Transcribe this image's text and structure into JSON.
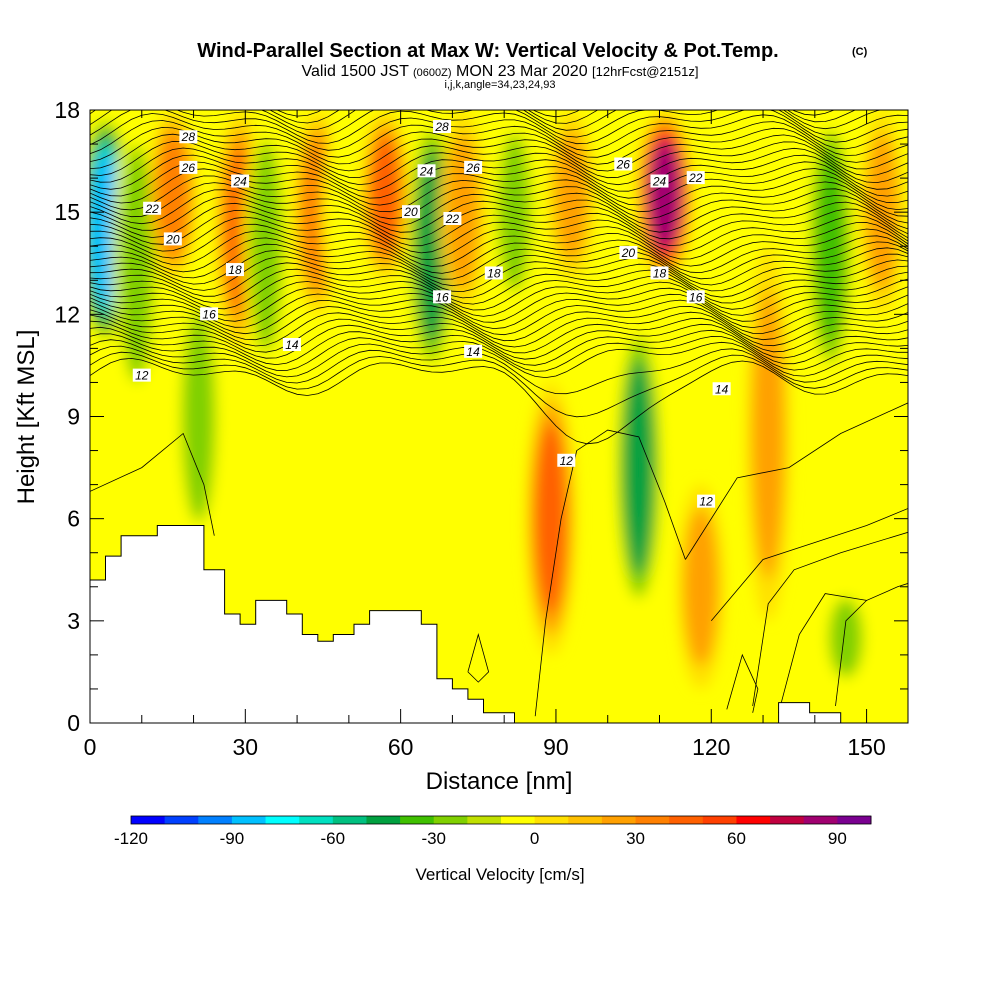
{
  "header": {
    "title": "Wind-Parallel Section at Max W: Vertical Velocity & Pot.Temp.",
    "copyright": "(C)",
    "valid_prefix": "Valid 1500 JST",
    "valid_utc": "(0600Z)",
    "valid_date": "MON 23 Mar 2020",
    "forecast": "[12hrFcst@2151z]",
    "indices": "i,j,k,angle=34,23,24,93"
  },
  "chart_data": {
    "type": "heatmap",
    "xlabel": "Distance [nm]",
    "ylabel": "Height [Kft MSL]",
    "xlim": [
      0,
      158
    ],
    "ylim": [
      0,
      18
    ],
    "x_ticks": [
      "0",
      "30",
      "60",
      "90",
      "120",
      "150"
    ],
    "y_ticks": [
      "0",
      "3",
      "6",
      "9",
      "12",
      "15",
      "18"
    ],
    "colorbar": {
      "label": "Vertical Velocity [cm/s]",
      "range": [
        -120,
        100
      ],
      "step": 10,
      "tick_labels": [
        "-120",
        "-90",
        "-60",
        "-30",
        "0",
        "30",
        "60",
        "90"
      ],
      "colors": [
        "#0000ff",
        "#0040ff",
        "#0080ff",
        "#00c0ff",
        "#00ffff",
        "#00e0c0",
        "#00c080",
        "#00a040",
        "#40c000",
        "#80d000",
        "#c0e000",
        "#ffff00",
        "#ffe000",
        "#ffc000",
        "#ffa000",
        "#ff8000",
        "#ff6000",
        "#ff4000",
        "#ff0000",
        "#c00040",
        "#a00070",
        "#7a0090"
      ]
    },
    "velocity_columns": [
      {
        "x": 3,
        "w": -100,
        "z_top": 18,
        "z_bot": 11
      },
      {
        "x": 9,
        "w": -45,
        "z_top": 18,
        "z_bot": 9
      },
      {
        "x": 16,
        "w": 50,
        "z_top": 18,
        "z_bot": 13
      },
      {
        "x": 21,
        "w": -40,
        "z_top": 13,
        "z_bot": 5
      },
      {
        "x": 29,
        "w": 55,
        "z_top": 18,
        "z_bot": 11
      },
      {
        "x": 34,
        "w": -35,
        "z_top": 18,
        "z_bot": 10
      },
      {
        "x": 44,
        "w": 50,
        "z_top": 18,
        "z_bot": 12
      },
      {
        "x": 49,
        "w": -20,
        "z_top": 18,
        "z_bot": 12
      },
      {
        "x": 57,
        "w": 55,
        "z_top": 18,
        "z_bot": 13
      },
      {
        "x": 66,
        "w": -65,
        "z_top": 18,
        "z_bot": 10
      },
      {
        "x": 72,
        "w": 40,
        "z_top": 18,
        "z_bot": 12
      },
      {
        "x": 82,
        "w": -35,
        "z_top": 18,
        "z_bot": 12
      },
      {
        "x": 89,
        "w": 60,
        "z_top": 10,
        "z_bot": 2
      },
      {
        "x": 93,
        "w": 40,
        "z_top": 18,
        "z_bot": 13
      },
      {
        "x": 106,
        "w": -60,
        "z_top": 12,
        "z_bot": 3
      },
      {
        "x": 111,
        "w": 95,
        "z_top": 18,
        "z_bot": 13
      },
      {
        "x": 118,
        "w": 45,
        "z_top": 7,
        "z_bot": 1
      },
      {
        "x": 131,
        "w": 30,
        "z_top": 14,
        "z_bot": 3
      },
      {
        "x": 143,
        "w": -50,
        "z_top": 18,
        "z_bot": 10
      },
      {
        "x": 146,
        "w": -40,
        "z_top": 4,
        "z_bot": 1
      },
      {
        "x": 153,
        "w": 30,
        "z_top": 18,
        "z_bot": 12
      }
    ],
    "theta_contours": {
      "levels_labeled": [
        "12",
        "14",
        "16",
        "18",
        "20",
        "22",
        "24",
        "26",
        "28"
      ],
      "labels": [
        {
          "text": "28",
          "x": 19,
          "z": 17.2
        },
        {
          "text": "26",
          "x": 19,
          "z": 16.3
        },
        {
          "text": "24",
          "x": 29,
          "z": 15.9
        },
        {
          "text": "22",
          "x": 12,
          "z": 15.1
        },
        {
          "text": "20",
          "x": 16,
          "z": 14.2
        },
        {
          "text": "18",
          "x": 28,
          "z": 13.3
        },
        {
          "text": "16",
          "x": 23,
          "z": 12.0
        },
        {
          "text": "14",
          "x": 39,
          "z": 11.1
        },
        {
          "text": "12",
          "x": 10,
          "z": 10.2
        },
        {
          "text": "28",
          "x": 68,
          "z": 17.5
        },
        {
          "text": "24",
          "x": 65,
          "z": 16.2
        },
        {
          "text": "26",
          "x": 74,
          "z": 16.3
        },
        {
          "text": "20",
          "x": 62,
          "z": 15.0
        },
        {
          "text": "22",
          "x": 70,
          "z": 14.8
        },
        {
          "text": "16",
          "x": 68,
          "z": 12.5
        },
        {
          "text": "18",
          "x": 78,
          "z": 13.2
        },
        {
          "text": "14",
          "x": 74,
          "z": 10.9
        },
        {
          "text": "12",
          "x": 92,
          "z": 7.7
        },
        {
          "text": "26",
          "x": 103,
          "z": 16.4
        },
        {
          "text": "24",
          "x": 110,
          "z": 15.9
        },
        {
          "text": "22",
          "x": 117,
          "z": 16.0
        },
        {
          "text": "20",
          "x": 104,
          "z": 13.8
        },
        {
          "text": "18",
          "x": 110,
          "z": 13.2
        },
        {
          "text": "16",
          "x": 117,
          "z": 12.5
        },
        {
          "text": "14",
          "x": 122,
          "z": 9.8
        },
        {
          "text": "12",
          "x": 119,
          "z": 6.5
        }
      ]
    },
    "terrain_profile": [
      [
        0,
        4.2
      ],
      [
        3,
        4.2
      ],
      [
        3,
        4.9
      ],
      [
        6,
        4.9
      ],
      [
        6,
        5.5
      ],
      [
        13,
        5.5
      ],
      [
        13,
        5.8
      ],
      [
        22,
        5.8
      ],
      [
        22,
        4.5
      ],
      [
        26,
        4.5
      ],
      [
        26,
        3.2
      ],
      [
        29,
        3.2
      ],
      [
        29,
        2.9
      ],
      [
        32,
        2.9
      ],
      [
        32,
        3.6
      ],
      [
        38,
        3.6
      ],
      [
        38,
        3.2
      ],
      [
        41,
        3.2
      ],
      [
        41,
        2.6
      ],
      [
        44,
        2.6
      ],
      [
        44,
        2.4
      ],
      [
        47,
        2.4
      ],
      [
        47,
        2.6
      ],
      [
        51,
        2.6
      ],
      [
        51,
        2.9
      ],
      [
        54,
        2.9
      ],
      [
        54,
        3.3
      ],
      [
        64,
        3.3
      ],
      [
        64,
        2.9
      ],
      [
        67,
        2.9
      ],
      [
        67,
        1.3
      ],
      [
        70,
        1.3
      ],
      [
        70,
        1.0
      ],
      [
        73,
        1.0
      ],
      [
        73,
        0.7
      ],
      [
        76,
        0.7
      ],
      [
        76,
        0.3
      ],
      [
        82,
        0.3
      ],
      [
        82,
        0.0
      ],
      [
        133,
        0.0
      ],
      [
        133,
        0.6
      ],
      [
        139,
        0.6
      ],
      [
        139,
        0.3
      ],
      [
        145,
        0.3
      ],
      [
        145,
        0.0
      ]
    ]
  }
}
